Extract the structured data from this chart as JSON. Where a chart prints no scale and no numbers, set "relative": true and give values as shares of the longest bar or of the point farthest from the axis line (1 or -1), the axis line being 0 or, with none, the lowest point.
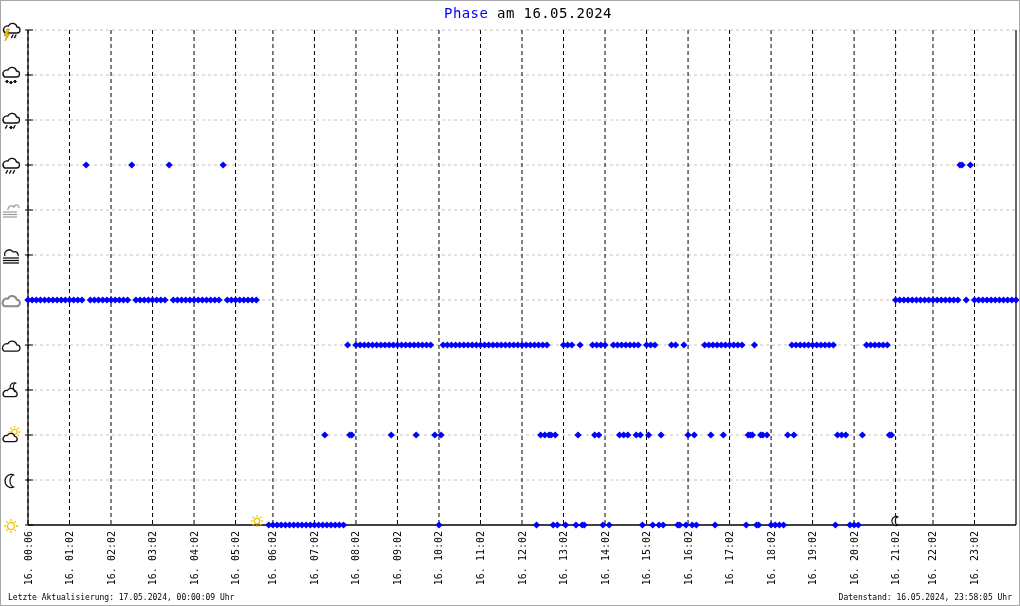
{
  "chart_data": {
    "type": "scatter",
    "title": "am 16.05.2024",
    "relative": true,
    "legend": "top",
    "marker": "diamond",
    "grid": true,
    "categories": [
      "16. 00:06",
      null,
      null,
      null,
      null,
      null,
      null,
      null,
      null,
      null,
      null,
      null,
      null,
      null,
      null,
      null,
      null,
      null,
      null,
      null,
      "16. 01:02",
      null,
      null,
      null,
      null,
      null,
      null,
      null,
      null,
      null,
      null,
      null,
      null,
      null,
      null,
      null,
      null,
      null,
      null,
      null,
      "16. 02:02",
      null,
      null,
      null,
      null,
      null,
      null,
      null,
      null,
      null,
      null,
      null,
      null,
      null,
      null,
      null,
      null,
      null,
      null,
      null,
      "16. 03:02",
      null,
      null,
      null,
      null,
      null,
      null,
      null,
      null,
      null,
      null,
      null,
      null,
      null,
      null,
      null,
      null,
      null,
      null,
      null,
      "16. 04:02",
      null,
      null,
      null,
      null,
      null,
      null,
      null,
      null,
      null,
      null,
      null,
      null,
      null,
      null,
      null,
      null,
      null,
      null,
      null,
      "16. 05:02",
      null,
      null,
      null,
      null,
      null,
      null,
      null,
      null,
      null,
      null,
      null,
      null,
      null,
      null,
      null,
      null,
      null,
      "16. 06:02",
      null,
      null,
      null,
      null,
      null,
      null,
      null,
      null,
      null,
      null,
      null,
      null,
      null,
      null,
      null,
      null,
      null,
      null,
      null,
      "16. 07:02",
      null,
      null,
      null,
      null,
      null,
      null,
      null,
      null,
      null,
      null,
      null,
      null,
      null,
      null,
      null,
      null,
      null,
      null,
      null,
      "16. 08:02",
      null,
      null,
      null,
      null,
      null,
      null,
      null,
      null,
      null,
      null,
      null,
      null,
      null,
      null,
      null,
      null,
      null,
      null,
      null,
      "16. 09:02",
      null,
      null,
      null,
      null,
      null,
      null,
      null,
      null,
      null,
      null,
      null,
      null,
      null,
      null,
      null,
      null,
      null,
      null,
      null,
      "16. 10:02",
      null,
      null,
      null,
      null,
      null,
      null,
      null,
      null,
      null,
      null,
      null,
      null,
      null,
      null,
      null,
      null,
      null,
      null,
      null,
      "16. 11:02",
      null,
      null,
      null,
      null,
      null,
      null,
      null,
      null,
      null,
      null,
      null,
      null,
      null,
      null,
      null,
      null,
      null,
      null,
      null,
      "16. 12:02",
      null,
      null,
      null,
      null,
      null,
      null,
      null,
      null,
      null,
      null,
      null,
      null,
      null,
      null,
      null,
      null,
      null,
      null,
      null,
      "16. 13:02",
      null,
      null,
      null,
      null,
      null,
      null,
      null,
      null,
      null,
      null,
      null,
      null,
      null,
      null,
      null,
      null,
      null,
      null,
      null,
      "16. 14:02",
      null,
      null,
      null,
      null,
      null,
      null,
      null,
      null,
      null,
      null,
      null,
      null,
      null,
      null,
      null,
      null,
      null,
      null,
      null,
      "16. 15:02",
      null,
      null,
      null,
      null,
      null,
      null,
      null,
      null,
      null,
      null,
      null,
      null,
      null,
      null,
      null,
      null,
      null,
      null,
      null,
      "16. 16:02",
      null,
      null,
      null,
      null,
      null,
      null,
      null,
      null,
      null,
      null,
      null,
      null,
      null,
      null,
      null,
      null,
      null,
      null,
      null,
      "16. 17:02",
      null,
      null,
      null,
      null,
      null,
      null,
      null,
      null,
      null,
      null,
      null,
      null,
      null,
      null,
      null,
      null,
      null,
      null,
      null,
      "16. 18:02",
      null,
      null,
      null,
      null,
      null,
      null,
      null,
      null,
      null,
      null,
      null,
      null,
      null,
      null,
      null,
      null,
      null,
      null,
      null,
      "16. 19:02",
      null,
      null,
      null,
      null,
      null,
      null,
      null,
      null,
      null,
      null,
      null,
      null,
      null,
      null,
      null,
      null,
      null,
      null,
      null,
      "16. 20:02",
      null,
      null,
      null,
      null,
      null,
      null,
      null,
      null,
      null,
      null,
      null,
      null,
      null,
      null,
      null,
      null,
      null,
      null,
      null,
      "16. 21:02",
      null,
      null,
      null,
      null,
      null,
      null,
      null,
      null,
      null,
      null,
      null,
      null,
      null,
      null,
      null,
      null,
      null,
      "16. 22:02",
      null,
      null,
      null,
      null,
      null,
      null,
      null,
      null,
      null,
      null,
      null,
      null,
      null,
      null,
      null,
      null,
      null,
      null,
      null,
      "16. 23:02",
      null,
      null,
      null,
      null,
      null,
      null,
      null,
      null,
      null,
      null,
      null,
      null,
      null,
      null,
      null,
      null,
      null,
      null,
      null,
      null
    ],
    "series": [
      {
        "name": "Phase",
        "color": "#0000ff",
        "values": [
          0.625,
          null,
          0.625,
          null,
          0.625,
          null,
          0.625,
          null,
          0.625,
          null,
          0.625,
          null,
          0.625,
          null,
          0.625,
          null,
          0.625,
          null,
          0.625,
          null,
          0.625,
          null,
          0.625,
          null,
          0.625,
          null,
          0.625,
          null,
          1,
          null,
          0.625,
          null,
          0.625,
          null,
          0.625,
          null,
          0.625,
          null,
          0.625,
          null,
          0.625,
          null,
          0.625,
          null,
          0.625,
          null,
          0.625,
          null,
          0.625,
          null,
          1,
          null,
          0.625,
          null,
          0.625,
          null,
          0.625,
          null,
          0.625,
          null,
          0.625,
          null,
          0.625,
          null,
          0.625,
          null,
          0.625,
          null,
          1,
          null,
          0.625,
          null,
          0.625,
          null,
          0.625,
          null,
          0.625,
          null,
          0.625,
          null,
          0.625,
          null,
          0.625,
          null,
          0.625,
          null,
          0.625,
          null,
          0.625,
          null,
          0.625,
          null,
          0.625,
          null,
          1,
          null,
          0.625,
          null,
          0.625,
          null,
          0.625,
          null,
          0.625,
          null,
          0.625,
          null,
          0.625,
          null,
          0.625,
          null,
          0.625,
          null,
          null,
          null,
          null,
          null,
          0,
          null,
          0,
          null,
          0,
          null,
          0,
          null,
          0,
          null,
          0,
          null,
          0,
          null,
          0,
          null,
          0,
          null,
          0,
          null,
          0,
          null,
          0,
          null,
          0,
          null,
          0,
          0.25,
          0,
          null,
          0,
          null,
          0,
          null,
          0,
          null,
          0,
          null,
          0.5,
          0.25,
          0.25,
          null,
          0.5,
          null,
          0.5,
          null,
          0.5,
          null,
          0.5,
          null,
          0.5,
          null,
          0.5,
          null,
          0.5,
          null,
          0.5,
          null,
          0.5,
          0.25,
          0.5,
          null,
          0.5,
          null,
          0.5,
          null,
          0.5,
          null,
          0.5,
          null,
          0.5,
          0.25,
          0.5,
          null,
          0.5,
          null,
          0.5,
          null,
          0.5,
          null,
          0.25,
          null,
          0,
          0.25,
          0.5,
          null,
          0.5,
          null,
          0.5,
          null,
          0.5,
          null,
          0.5,
          null,
          0.5,
          null,
          0.5,
          null,
          0.5,
          null,
          0.5,
          null,
          0.5,
          null,
          0.5,
          null,
          0.5,
          null,
          0.5,
          null,
          0.5,
          null,
          0.5,
          null,
          0.5,
          null,
          0.5,
          null,
          0.5,
          null,
          0.5,
          null,
          0.5,
          null,
          0.5,
          null,
          0.5,
          null,
          0.5,
          0,
          0.5,
          0.25,
          0.5,
          0.25,
          0.5,
          0.25,
          0.25,
          0,
          0.25,
          0,
          null,
          null,
          0.5,
          0,
          0.5,
          null,
          0.5,
          null,
          0,
          0.25,
          0.5,
          0,
          0,
          null,
          null,
          null,
          0.5,
          0.25,
          0.5,
          0.25,
          0.5,
          0,
          0.5,
          null,
          0,
          null,
          0.5,
          null,
          0.5,
          0.25,
          0.5,
          0.25,
          0.5,
          0.25,
          0.5,
          null,
          0.5,
          0.25,
          0.5,
          0.25,
          0,
          null,
          0.5,
          0.25,
          0.5,
          0,
          0.5,
          null,
          0,
          0.25,
          0,
          null,
          null,
          null,
          0.5,
          null,
          0.5,
          0,
          0,
          null,
          0.5,
          0,
          0.25,
          null,
          0,
          0.25,
          0,
          null,
          null,
          null,
          0.5,
          null,
          0.5,
          0.25,
          0.5,
          0,
          0.5,
          null,
          0.5,
          0.25,
          0.5,
          null,
          0.5,
          null,
          0.5,
          null,
          0.5,
          null,
          0.5,
          null,
          0,
          0.25,
          0.25,
          0.25,
          0.5,
          0,
          0,
          0.25,
          0.25,
          null,
          0.25,
          null,
          0,
          null,
          0,
          null,
          0,
          null,
          0,
          null,
          0.25,
          null,
          0.5,
          0.25,
          0.5,
          null,
          0.5,
          null,
          0.5,
          null,
          0.5,
          null,
          0.5,
          null,
          0.5,
          null,
          0.5,
          null,
          0.5,
          null,
          0.5,
          null,
          0.5,
          0,
          0.25,
          null,
          0.25,
          null,
          0.25,
          null,
          0,
          null,
          0,
          null,
          0,
          null,
          0.25,
          null,
          0.5,
          null,
          0.5,
          null,
          0.5,
          null,
          0.5,
          null,
          0.5,
          null,
          0.5,
          0.25,
          0.25,
          null,
          0.625,
          null,
          0.625,
          null,
          0.625,
          null,
          0.625,
          null,
          0.625,
          null,
          0.625,
          null,
          0.625,
          null,
          0.625,
          null,
          0.625,
          null,
          0.625,
          null,
          0.625,
          null,
          0.625,
          null,
          0.625,
          null,
          0.625,
          null,
          0.625,
          null,
          0.625,
          1,
          1,
          null,
          0.625,
          null,
          1,
          null,
          0.625,
          null,
          0.625,
          null,
          0.625,
          null,
          0.625,
          null,
          0.625,
          null,
          0.625,
          null,
          0.625,
          null,
          0.625,
          null,
          0.625,
          null,
          0.625,
          null,
          0.625
        ]
      }
    ],
    "annotations": [
      "Letzte Aktualisierung: 17.05.2024, 00:00:09 Uhr",
      "Datenstand: 16.05.2024, 23:58:05 Uhr"
    ]
  }
}
